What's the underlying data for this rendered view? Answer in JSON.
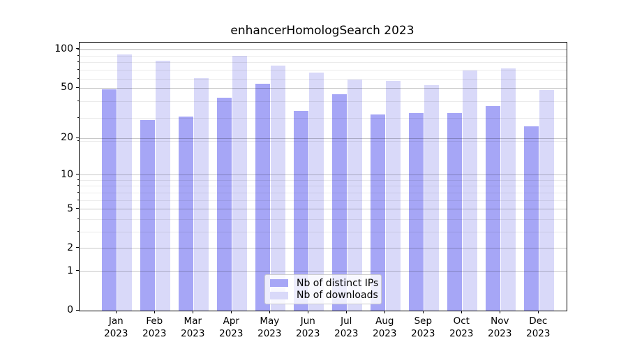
{
  "title": "enhancerHomologSearch 2023",
  "colors": {
    "distinct_ips": "#a6a6f6",
    "downloads": "#d9d9f9",
    "grid_major": "rgba(0,0,0,0.22)",
    "grid_minor": "rgba(0,0,0,0.08)",
    "spine": "#000000",
    "background": "#ffffff",
    "legend_bg": "rgba(255,255,255,0.8)",
    "legend_border": "#cccccc"
  },
  "chart_data": {
    "type": "bar",
    "title": "enhancerHomologSearch 2023",
    "categories": [
      "Jan 2023",
      "Feb 2023",
      "Mar 2023",
      "Apr 2023",
      "May 2023",
      "Jun 2023",
      "Jul 2023",
      "Aug 2023",
      "Sep 2023",
      "Oct 2023",
      "Nov 2023",
      "Dec 2023"
    ],
    "series": [
      {
        "name": "Nb of distinct IPs",
        "color": "#a6a6f6",
        "values": [
          49,
          28,
          30,
          42,
          54,
          33,
          45,
          31,
          32,
          32,
          36,
          25
        ]
      },
      {
        "name": "Nb of downloads",
        "color": "#d9d9f9",
        "values": [
          91,
          82,
          60,
          89,
          75,
          66,
          58,
          57,
          53,
          69,
          71,
          48
        ]
      }
    ],
    "xlabel": "",
    "ylabel": "",
    "yscale": "log1p",
    "yticks": [
      100,
      50,
      20,
      10,
      5,
      2,
      1,
      0
    ],
    "minor_gridlines": [
      3,
      4,
      6,
      7,
      8,
      9,
      19,
      29,
      39,
      59,
      69,
      79,
      89,
      99
    ],
    "ylim": [
      0,
      113
    ],
    "grid": "horizontal-major-and-minor",
    "legend_position": "lower center"
  }
}
